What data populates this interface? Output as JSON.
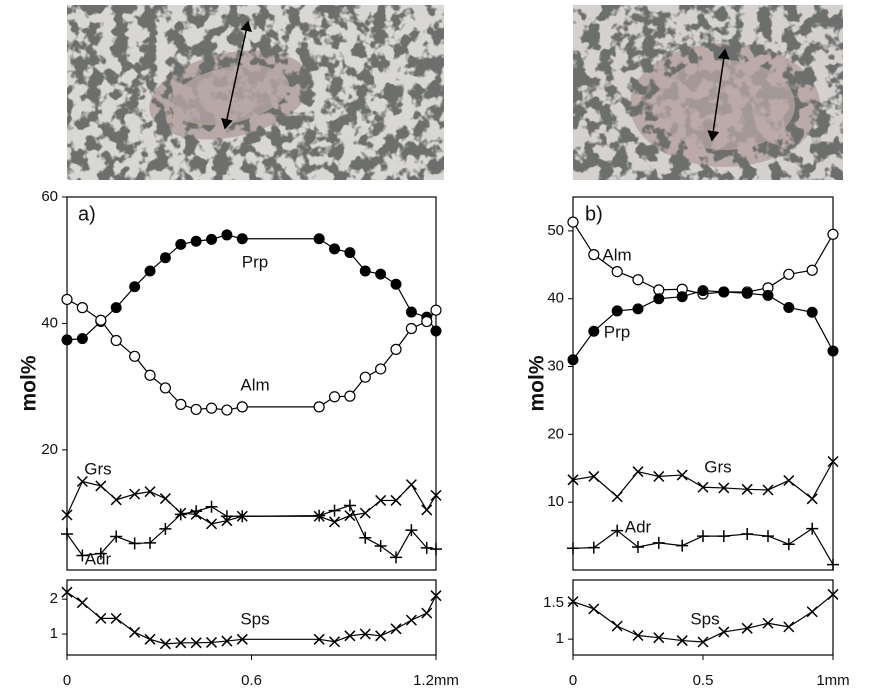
{
  "chart_data": [
    {
      "type": "line",
      "panel_label": "a)",
      "ylabel": "mol%",
      "x": [
        0,
        0.05,
        0.11,
        0.16,
        0.22,
        0.27,
        0.32,
        0.37,
        0.42,
        0.47,
        0.52,
        0.57,
        0.82,
        0.87,
        0.92,
        0.97,
        1.02,
        1.07,
        1.12,
        1.17,
        1.2
      ],
      "xlim": [
        0,
        1.2
      ],
      "ylim": [
        1,
        60
      ],
      "yticks": [
        20,
        40,
        60
      ],
      "series": [
        {
          "name": "Prp",
          "color": "#000000",
          "marker": "filled-circle",
          "values": [
            37.4,
            37.6,
            40.3,
            42.5,
            45.8,
            48.3,
            50.4,
            52.5,
            53,
            53.3,
            54,
            53.4,
            53.4,
            51.8,
            51.2,
            48.3,
            47.8,
            46.2,
            41.8,
            41,
            38.8
          ]
        },
        {
          "name": "Alm",
          "color": "#000000",
          "marker": "open-circle",
          "values": [
            43.8,
            42.5,
            40.5,
            37.3,
            34.8,
            31.8,
            29.8,
            27.2,
            26.4,
            26.6,
            26.3,
            26.8,
            26.8,
            28.4,
            28.5,
            31.5,
            32.8,
            35.9,
            39.2,
            40.3,
            42.1
          ]
        },
        {
          "name": "Grs",
          "color": "#000000",
          "marker": "x",
          "values": [
            9.7,
            15,
            14.3,
            12.1,
            13,
            13.4,
            12.3,
            10,
            9.8,
            8.3,
            8.8,
            9.5,
            9.5,
            8.6,
            9.6,
            10,
            12,
            12,
            14.5,
            10.5,
            12.8
          ]
        },
        {
          "name": "Adr",
          "color": "#000000",
          "marker": "plus",
          "values": [
            6.7,
            3.3,
            3.6,
            6.3,
            5.2,
            5.3,
            7.5,
            9.8,
            10.3,
            11,
            9.5,
            9.5,
            9.6,
            10.4,
            11.2,
            6.1,
            4.8,
            3,
            7.3,
            4.5,
            4.3
          ]
        }
      ]
    },
    {
      "type": "line",
      "x": [
        0,
        0.05,
        0.11,
        0.16,
        0.22,
        0.27,
        0.32,
        0.37,
        0.42,
        0.47,
        0.52,
        0.57,
        0.82,
        0.87,
        0.92,
        0.97,
        1.02,
        1.07,
        1.12,
        1.17,
        1.2
      ],
      "xlim": [
        0,
        1.2
      ],
      "xticks": [
        0,
        0.6,
        {
          "value": 1.2,
          "label": "1.2mm"
        }
      ],
      "ylim": [
        0.4,
        2.55
      ],
      "yticks": [
        1,
        2
      ],
      "series": [
        {
          "name": "Sps",
          "color": "#000000",
          "marker": "x",
          "values": [
            2.2,
            1.9,
            1.45,
            1.45,
            1.05,
            0.85,
            0.72,
            0.75,
            0.75,
            0.76,
            0.8,
            0.85,
            0.85,
            0.78,
            0.95,
            1.0,
            0.95,
            1.15,
            1.4,
            1.6,
            2.1
          ]
        }
      ]
    },
    {
      "type": "line",
      "panel_label": "b)",
      "ylabel": "mol%",
      "x": [
        0,
        0.08,
        0.17,
        0.25,
        0.33,
        0.42,
        0.5,
        0.58,
        0.67,
        0.75,
        0.83,
        0.92,
        1
      ],
      "xlim": [
        0,
        1
      ],
      "ylim": [
        0,
        55
      ],
      "yticks": [
        10,
        20,
        30,
        40,
        50
      ],
      "series": [
        {
          "name": "Alm",
          "color": "#000000",
          "marker": "open-circle",
          "values": [
            51.3,
            46.5,
            44,
            42.8,
            41.3,
            41.4,
            40.7,
            41,
            41,
            41.6,
            43.6,
            44.2,
            49.5
          ]
        },
        {
          "name": "Prp",
          "color": "#000000",
          "marker": "filled-circle",
          "values": [
            31,
            35.2,
            38.2,
            38.5,
            40,
            40.3,
            41.2,
            41,
            40.8,
            40.5,
            38.7,
            38,
            32.3
          ]
        },
        {
          "name": "Grs",
          "color": "#000000",
          "marker": "x",
          "values": [
            13.3,
            13.8,
            10.8,
            14.5,
            13.8,
            14,
            12.2,
            12.1,
            11.9,
            11.8,
            13.2,
            10.5,
            16
          ]
        },
        {
          "name": "Adr",
          "color": "#000000",
          "marker": "plus",
          "values": [
            3.2,
            3.3,
            5.8,
            3.4,
            4,
            3.6,
            5,
            5,
            5.3,
            5,
            3.8,
            6.1,
            0.8
          ]
        }
      ]
    },
    {
      "type": "line",
      "x": [
        0,
        0.08,
        0.17,
        0.25,
        0.33,
        0.42,
        0.5,
        0.58,
        0.67,
        0.75,
        0.83,
        0.92,
        1
      ],
      "xlim": [
        0,
        1
      ],
      "xticks": [
        0,
        0.5,
        {
          "value": 1,
          "label": "1mm"
        }
      ],
      "ylim": [
        0.78,
        1.82
      ],
      "yticks": [
        1,
        1.5
      ],
      "series": [
        {
          "name": "Sps",
          "color": "#000000",
          "marker": "x",
          "values": [
            1.52,
            1.42,
            1.18,
            1.05,
            1.02,
            0.98,
            0.96,
            1.1,
            1.15,
            1.22,
            1.17,
            1.38,
            1.62
          ]
        }
      ]
    }
  ]
}
